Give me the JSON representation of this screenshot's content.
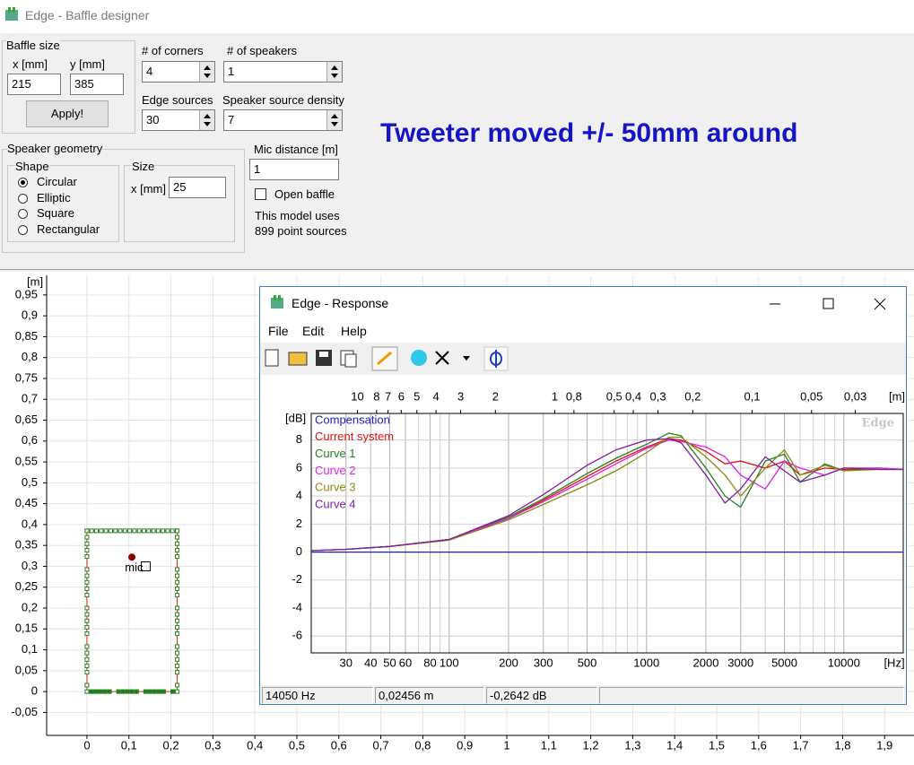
{
  "window": {
    "title": "Edge - Baffle designer"
  },
  "form": {
    "baffle_size": {
      "label": "Baffle size",
      "x_label": "x [mm]",
      "y_label": "y [mm]",
      "x": 215,
      "y": 385,
      "apply": "Apply!"
    },
    "corners": {
      "label": "# of corners",
      "value": 4
    },
    "speakers": {
      "label": "# of speakers",
      "value": 1
    },
    "edge_sources": {
      "label": "Edge sources",
      "value": 30
    },
    "density": {
      "label": "Speaker source density",
      "value": 7
    },
    "geometry": {
      "label": "Speaker geometry",
      "shape_label": "Shape",
      "shapes": [
        "Circular",
        "Elliptic",
        "Square",
        "Rectangular"
      ],
      "selected": 0,
      "size_label": "Size",
      "size_x_label": "x [mm]",
      "size_x": 25
    },
    "mic_distance": {
      "label": "Mic distance [m]",
      "value": 1
    },
    "open_baffle": {
      "label": "Open baffle",
      "checked": false
    },
    "info": [
      "This model uses",
      "899 point sources"
    ]
  },
  "annotation": "Tweeter moved +/- 50mm around",
  "baffle_plot": {
    "unit": "[m]",
    "xlim": [
      -0.096,
      1.97
    ],
    "ylim": [
      -0.105,
      0.997
    ],
    "xticks": [
      0,
      {
        "value": 0.1,
        "label": "0,1"
      },
      {
        "value": 0.2,
        "label": "0,2"
      },
      {
        "value": 0.3,
        "label": "0,3"
      },
      {
        "value": 0.4,
        "label": "0,4"
      },
      {
        "value": 0.5,
        "label": "0,5"
      },
      {
        "value": 0.6,
        "label": "0,6"
      },
      {
        "value": 0.7,
        "label": "0,7"
      },
      {
        "value": 0.8,
        "label": "0,8"
      },
      {
        "value": 0.9,
        "label": "0,9"
      },
      1,
      {
        "value": 1.1,
        "label": "1,1"
      },
      {
        "value": 1.2,
        "label": "1,2"
      },
      {
        "value": 1.3,
        "label": "1,3"
      },
      {
        "value": 1.4,
        "label": "1,4"
      },
      {
        "value": 1.5,
        "label": "1,5"
      },
      {
        "value": 1.6,
        "label": "1,6"
      },
      {
        "value": 1.7,
        "label": "1,7"
      },
      {
        "value": 1.8,
        "label": "1,8"
      },
      {
        "value": 1.9,
        "label": "1,9"
      }
    ],
    "yticks": [
      {
        "value": -0.05,
        "label": "-0,05"
      },
      0,
      {
        "value": 0.05,
        "label": "0,05"
      },
      {
        "value": 0.1,
        "label": "0,1"
      },
      {
        "value": 0.15,
        "label": "0,15"
      },
      {
        "value": 0.2,
        "label": "0,2"
      },
      {
        "value": 0.25,
        "label": "0,25"
      },
      {
        "value": 0.3,
        "label": "0,3"
      },
      {
        "value": 0.35,
        "label": "0,35"
      },
      {
        "value": 0.4,
        "label": "0,4"
      },
      {
        "value": 0.45,
        "label": "0,45"
      },
      {
        "value": 0.5,
        "label": "0,5"
      },
      {
        "value": 0.55,
        "label": "0,55"
      },
      {
        "value": 0.6,
        "label": "0,6"
      },
      {
        "value": 0.65,
        "label": "0,65"
      },
      {
        "value": 0.7,
        "label": "0,7"
      },
      {
        "value": 0.75,
        "label": "0,75"
      },
      {
        "value": 0.8,
        "label": "0,8"
      },
      {
        "value": 0.85,
        "label": "0,85"
      },
      {
        "value": 0.9,
        "label": "0,9"
      },
      {
        "value": 0.95,
        "label": "0,95"
      }
    ],
    "speaker": {
      "x": 0.107,
      "y": 0.322
    },
    "mic": {
      "label": "mic",
      "x": 0.14,
      "y": 0.3
    }
  },
  "response": {
    "title": "Edge - Response",
    "menu": [
      "File",
      "Edit",
      "Help"
    ],
    "chart_data": {
      "type": "line",
      "x_scale": "log",
      "grid": true,
      "x_unit": "[Hz]",
      "y_unit": "[dB]",
      "top_unit": "[m]",
      "watermark": "Edge",
      "xlim": [
        20,
        20000
      ],
      "ylim": [
        -7.2,
        9.9
      ],
      "xticks": [
        30,
        40,
        50,
        60,
        80,
        100,
        200,
        300,
        500,
        1000,
        2000,
        3000,
        5000,
        10000
      ],
      "x_minor_grid": [
        20,
        70,
        90,
        400,
        600,
        700,
        800,
        900,
        4000,
        6000,
        7000,
        8000,
        9000,
        20000
      ],
      "yticks": [
        -6,
        -4,
        -2,
        0,
        2,
        4,
        6,
        8
      ],
      "top_ticks": [
        10,
        8,
        7,
        6,
        5,
        4,
        3,
        2,
        1,
        {
          "value": 0.8,
          "label": "0,8"
        },
        {
          "value": 0.5,
          "label": "0,5"
        },
        {
          "value": 0.4,
          "label": "0,4"
        },
        {
          "value": 0.3,
          "label": "0,3"
        },
        {
          "value": 0.2,
          "label": "0,2"
        },
        {
          "value": 0.1,
          "label": "0,1"
        },
        {
          "value": 0.05,
          "label": "0,05"
        },
        {
          "value": 0.03,
          "label": "0,03"
        }
      ],
      "x": [
        20,
        30,
        50,
        100,
        200,
        300,
        500,
        700,
        1000,
        1300,
        1500,
        2000,
        2500,
        3000,
        4000,
        5000,
        6000,
        8000,
        10000,
        15000,
        20000
      ],
      "series": [
        {
          "name": "Compensation",
          "color": "#2020c0",
          "values": [
            0,
            0,
            0,
            0,
            0,
            0,
            0,
            0,
            0,
            0,
            0,
            0,
            0,
            0,
            0,
            0,
            0,
            0,
            0,
            0,
            0
          ]
        },
        {
          "name": "Current system",
          "color": "#e01010",
          "values": [
            0.1,
            0.2,
            0.4,
            0.9,
            2.4,
            3.7,
            5.4,
            6.5,
            7.5,
            8.1,
            8.0,
            7.2,
            6.3,
            6.5,
            6.0,
            6.5,
            5.5,
            6.0,
            5.9,
            6.0,
            5.9
          ]
        },
        {
          "name": "Curve 1",
          "color": "#208020",
          "values": [
            0.1,
            0.2,
            0.4,
            0.9,
            2.5,
            3.8,
            5.6,
            6.7,
            7.7,
            8.5,
            8.3,
            6.0,
            4.0,
            3.2,
            6.5,
            7.0,
            5.0,
            6.3,
            5.8,
            6.0,
            5.9
          ]
        },
        {
          "name": "Curve 2",
          "color": "#e020e0",
          "values": [
            0.1,
            0.2,
            0.4,
            0.9,
            2.4,
            3.6,
            5.2,
            6.3,
            7.4,
            8.0,
            7.9,
            7.5,
            6.8,
            5.5,
            4.5,
            6.5,
            6.0,
            5.5,
            6.0,
            6.0,
            5.9
          ]
        },
        {
          "name": "Curve 3",
          "color": "#8a8a10",
          "values": [
            0.1,
            0.2,
            0.4,
            0.85,
            2.3,
            3.4,
            4.8,
            5.8,
            7.1,
            8.2,
            8.2,
            6.8,
            5.5,
            4.0,
            6.0,
            7.3,
            5.5,
            6.2,
            5.8,
            5.9,
            5.9
          ]
        },
        {
          "name": "Curve 4",
          "color": "#8020a0",
          "values": [
            0.1,
            0.2,
            0.4,
            0.9,
            2.6,
            4.1,
            6.2,
            7.3,
            8.0,
            8.1,
            7.8,
            5.5,
            3.5,
            4.5,
            6.8,
            5.8,
            5.0,
            5.5,
            6.0,
            5.9,
            5.9
          ]
        }
      ]
    },
    "status": [
      "14050 Hz",
      "0,02456 m",
      "-0,2642 dB"
    ]
  }
}
